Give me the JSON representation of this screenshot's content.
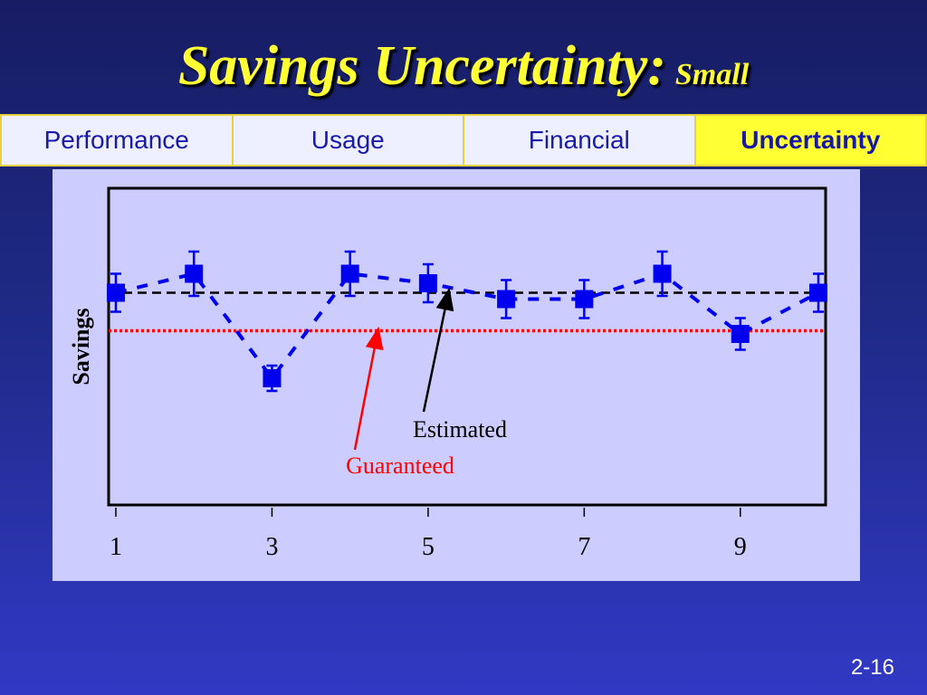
{
  "slide": {
    "title_main": "Savings Uncertainty:",
    "title_sub": "Small",
    "page_number": "2-16"
  },
  "tabs": [
    {
      "label": "Performance",
      "active": false
    },
    {
      "label": "Usage",
      "active": false
    },
    {
      "label": "Financial",
      "active": false
    },
    {
      "label": "Uncertainty",
      "active": true
    }
  ],
  "colors": {
    "series": "#0000ee",
    "estimated_line": "#000000",
    "guaranteed_line": "#ff0000",
    "title": "#ffff33"
  },
  "chart_data": {
    "type": "scatter",
    "title": "",
    "xlabel": "",
    "ylabel": "Savings",
    "x_ticks": [
      "1",
      "3",
      "5",
      "7",
      "9"
    ],
    "x_tick_values": [
      1,
      3,
      5,
      7,
      9
    ],
    "xlim": [
      1,
      10
    ],
    "ylim": [
      0,
      10
    ],
    "grid": false,
    "series": [
      {
        "x": [
          1,
          2,
          3,
          4,
          5,
          6,
          7,
          8,
          9,
          10
        ],
        "y": [
          6.7,
          7.3,
          4.0,
          7.3,
          7.0,
          6.5,
          6.5,
          7.3,
          5.4,
          6.7
        ],
        "err": [
          0.6,
          0.7,
          0.4,
          0.7,
          0.6,
          0.6,
          0.6,
          0.7,
          0.5,
          0.6
        ]
      }
    ],
    "reference_lines": [
      {
        "y": 6.7,
        "style": "dashed",
        "color": "#000000",
        "label": "Estimated"
      },
      {
        "y": 5.5,
        "style": "dotted",
        "color": "#ff0000",
        "label": "Guaranteed"
      }
    ]
  }
}
